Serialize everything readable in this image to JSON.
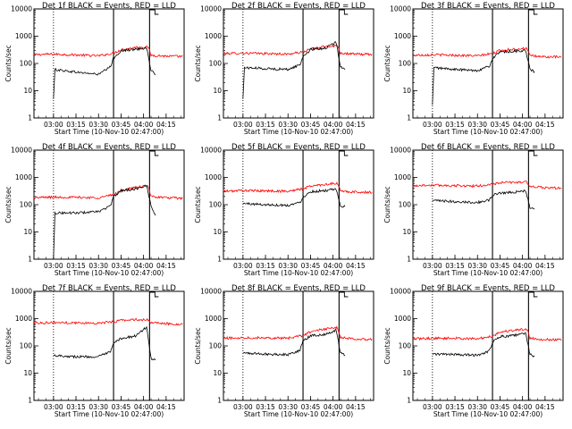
{
  "chart_data": [
    {
      "type": "line",
      "title": "Det 1f BLACK = Events, RED = LLD",
      "xlabel": "Start Time (10-Nov-10 02:47:00)",
      "ylabel": "Counts/sec",
      "yscale": "log",
      "ylim": [
        1,
        10000
      ],
      "xlim": [
        "02:47:00",
        "04:27:00"
      ],
      "x_ticks": [
        "03:00",
        "03:15",
        "03:30",
        "03:45",
        "04:00",
        "04:15"
      ],
      "y_ticks": [
        "1",
        "10",
        "100",
        "1000",
        "10000"
      ],
      "markers": [
        {
          "time": "03:00",
          "style": "dotted"
        },
        {
          "time": "03:40",
          "style": "solid"
        },
        {
          "time": "04:04",
          "style": "solid"
        }
      ],
      "series": [
        {
          "color": "#ff0000",
          "t": [
            "02:47",
            "03:00",
            "03:15",
            "03:30",
            "03:40",
            "03:45",
            "03:55",
            "04:03",
            "04:05",
            "04:15",
            "04:26"
          ],
          "values": [
            210,
            220,
            205,
            190,
            240,
            320,
            390,
            400,
            200,
            185,
            180
          ]
        },
        {
          "color": "#000000",
          "t": [
            "03:00",
            "03:01",
            "03:15",
            "03:30",
            "03:38",
            "03:40",
            "03:45",
            "03:55",
            "04:02",
            "04:05",
            "04:08"
          ],
          "values": [
            5,
            60,
            48,
            40,
            75,
            160,
            290,
            330,
            380,
            55,
            40
          ]
        }
      ]
    },
    {
      "type": "line",
      "title": "Det 2f BLACK = Events, RED = LLD",
      "xlabel": "Start Time (10-Nov-10 02:47:00)",
      "ylabel": "Counts/sec",
      "yscale": "log",
      "ylim": [
        1,
        10000
      ],
      "xlim": [
        "02:47:00",
        "04:27:00"
      ],
      "x_ticks": [
        "03:00",
        "03:15",
        "03:30",
        "03:45",
        "04:00",
        "04:15"
      ],
      "y_ticks": [
        "1",
        "10",
        "100",
        "1000",
        "10000"
      ],
      "markers": [
        {
          "time": "03:00",
          "style": "dotted"
        },
        {
          "time": "03:40",
          "style": "solid"
        },
        {
          "time": "04:04",
          "style": "solid"
        }
      ],
      "series": [
        {
          "color": "#ff0000",
          "t": [
            "02:47",
            "03:00",
            "03:15",
            "03:30",
            "03:40",
            "03:45",
            "03:55",
            "04:03",
            "04:05",
            "04:15",
            "04:26"
          ],
          "values": [
            230,
            240,
            230,
            220,
            260,
            340,
            420,
            450,
            240,
            220,
            215
          ]
        },
        {
          "color": "#000000",
          "t": [
            "03:00",
            "03:01",
            "03:15",
            "03:30",
            "03:38",
            "03:40",
            "03:45",
            "03:55",
            "04:02",
            "04:05",
            "04:08"
          ],
          "values": [
            5,
            70,
            65,
            60,
            90,
            180,
            320,
            370,
            600,
            80,
            60
          ]
        }
      ]
    },
    {
      "type": "line",
      "title": "Det 3f BLACK = Events, RED = LLD",
      "xlabel": "Start Time (10-Nov-10 02:47:00)",
      "ylabel": "Counts/sec",
      "yscale": "log",
      "ylim": [
        1,
        10000
      ],
      "xlim": [
        "02:47:00",
        "04:27:00"
      ],
      "x_ticks": [
        "03:00",
        "03:15",
        "03:30",
        "03:45",
        "04:00",
        "04:15"
      ],
      "y_ticks": [
        "1",
        "10",
        "100",
        "1000",
        "10000"
      ],
      "markers": [
        {
          "time": "03:00",
          "style": "dotted"
        },
        {
          "time": "03:40",
          "style": "solid"
        },
        {
          "time": "04:04",
          "style": "solid"
        }
      ],
      "series": [
        {
          "color": "#ff0000",
          "t": [
            "02:47",
            "03:00",
            "03:15",
            "03:30",
            "03:40",
            "03:45",
            "03:55",
            "04:03",
            "04:05",
            "04:15",
            "04:26"
          ],
          "values": [
            200,
            210,
            200,
            190,
            230,
            300,
            340,
            360,
            190,
            175,
            170
          ]
        },
        {
          "color": "#000000",
          "t": [
            "03:00",
            "03:01",
            "03:15",
            "03:30",
            "03:38",
            "03:40",
            "03:45",
            "03:55",
            "04:02",
            "04:05",
            "04:08"
          ],
          "values": [
            3,
            70,
            60,
            55,
            80,
            150,
            260,
            280,
            300,
            60,
            50
          ]
        }
      ]
    },
    {
      "type": "line",
      "title": "Det 4f BLACK = Events, RED = LLD",
      "xlabel": "Start Time (10-Nov-10 02:47:00)",
      "ylabel": "Counts/sec",
      "yscale": "log",
      "ylim": [
        1,
        10000
      ],
      "xlim": [
        "02:47:00",
        "04:27:00"
      ],
      "x_ticks": [
        "03:00",
        "03:15",
        "03:30",
        "03:45",
        "04:00",
        "04:15"
      ],
      "y_ticks": [
        "1",
        "10",
        "100",
        "1000",
        "10000"
      ],
      "markers": [
        {
          "time": "03:00",
          "style": "dotted"
        },
        {
          "time": "03:40",
          "style": "solid"
        },
        {
          "time": "04:04",
          "style": "solid"
        }
      ],
      "series": [
        {
          "color": "#ff0000",
          "t": [
            "02:47",
            "03:00",
            "03:15",
            "03:30",
            "03:40",
            "03:45",
            "03:55",
            "04:03",
            "04:05",
            "04:15",
            "04:26"
          ],
          "values": [
            180,
            190,
            185,
            180,
            230,
            330,
            430,
            480,
            200,
            180,
            170
          ]
        },
        {
          "color": "#000000",
          "t": [
            "03:00",
            "03:01",
            "03:15",
            "03:30",
            "03:38",
            "03:40",
            "03:45",
            "03:55",
            "04:02",
            "04:05",
            "04:08"
          ],
          "values": [
            1,
            50,
            50,
            55,
            90,
            190,
            330,
            380,
            500,
            90,
            40
          ]
        }
      ]
    },
    {
      "type": "line",
      "title": "Det 5f BLACK = Events, RED = LLD",
      "xlabel": "Start Time (10-Nov-10 02:47:00)",
      "ylabel": "Counts/sec",
      "yscale": "log",
      "ylim": [
        1,
        10000
      ],
      "xlim": [
        "02:47:00",
        "04:27:00"
      ],
      "x_ticks": [
        "03:00",
        "03:15",
        "03:30",
        "03:45",
        "04:00",
        "04:15"
      ],
      "y_ticks": [
        "1",
        "10",
        "100",
        "1000",
        "10000"
      ],
      "markers": [
        {
          "time": "03:00",
          "style": "dotted"
        },
        {
          "time": "03:40",
          "style": "solid"
        },
        {
          "time": "04:04",
          "style": "solid"
        }
      ],
      "series": [
        {
          "color": "#ff0000",
          "t": [
            "02:47",
            "03:00",
            "03:15",
            "03:30",
            "03:40",
            "03:45",
            "03:55",
            "04:03",
            "04:05",
            "04:15",
            "04:26"
          ],
          "values": [
            310,
            330,
            320,
            310,
            380,
            480,
            560,
            600,
            310,
            290,
            280
          ]
        },
        {
          "color": "#000000",
          "t": [
            "03:00",
            "03:01",
            "03:15",
            "03:30",
            "03:38",
            "03:40",
            "03:45",
            "03:55",
            "04:02",
            "04:05",
            "04:08"
          ],
          "values": [
            110,
            110,
            100,
            95,
            120,
            190,
            300,
            330,
            360,
            90,
            85
          ]
        }
      ]
    },
    {
      "type": "line",
      "title": "Det 6f BLACK = Events, RED = LLD",
      "xlabel": "Start Time (10-Nov-10 02:47:00)",
      "ylabel": "Counts/sec",
      "yscale": "log",
      "ylim": [
        1,
        10000
      ],
      "xlim": [
        "02:47:00",
        "04:27:00"
      ],
      "x_ticks": [
        "03:00",
        "03:15",
        "03:30",
        "03:45",
        "04:00",
        "04:15"
      ],
      "y_ticks": [
        "1",
        "10",
        "100",
        "1000",
        "10000"
      ],
      "markers": [
        {
          "time": "03:00",
          "style": "dotted"
        },
        {
          "time": "03:40",
          "style": "solid"
        },
        {
          "time": "04:04",
          "style": "solid"
        }
      ],
      "series": [
        {
          "color": "#ff0000",
          "t": [
            "02:47",
            "03:00",
            "03:15",
            "03:30",
            "03:40",
            "03:45",
            "03:55",
            "04:03",
            "04:05",
            "04:15",
            "04:26"
          ],
          "values": [
            500,
            520,
            500,
            480,
            560,
            640,
            660,
            680,
            450,
            420,
            400
          ]
        },
        {
          "color": "#000000",
          "t": [
            "03:00",
            "03:01",
            "03:15",
            "03:30",
            "03:38",
            "03:40",
            "03:45",
            "03:55",
            "04:02",
            "04:05",
            "04:08"
          ],
          "values": [
            140,
            140,
            130,
            120,
            150,
            220,
            270,
            290,
            320,
            80,
            70
          ]
        }
      ]
    },
    {
      "type": "line",
      "title": "Det 7f BLACK = Events, RED = LLD",
      "xlabel": "Start Time (10-Nov-10 02:47:00)",
      "ylabel": "Counts/sec",
      "yscale": "log",
      "ylim": [
        1,
        10000
      ],
      "xlim": [
        "02:47:00",
        "04:27:00"
      ],
      "x_ticks": [
        "03:00",
        "03:15",
        "03:30",
        "03:45",
        "04:00",
        "04:15"
      ],
      "y_ticks": [
        "1",
        "10",
        "100",
        "1000",
        "10000"
      ],
      "markers": [
        {
          "time": "03:00",
          "style": "dotted"
        },
        {
          "time": "03:40",
          "style": "solid"
        },
        {
          "time": "04:04",
          "style": "solid"
        }
      ],
      "series": [
        {
          "color": "#ff0000",
          "t": [
            "02:47",
            "03:00",
            "03:15",
            "03:30",
            "03:40",
            "03:45",
            "03:55",
            "04:03",
            "04:05",
            "04:15",
            "04:26"
          ],
          "values": [
            700,
            720,
            700,
            680,
            760,
            880,
            920,
            900,
            700,
            650,
            620
          ]
        },
        {
          "color": "#000000",
          "t": [
            "03:00",
            "03:01",
            "03:15",
            "03:30",
            "03:38",
            "03:40",
            "03:45",
            "03:55",
            "04:02",
            "04:05",
            "04:08"
          ],
          "values": [
            45,
            45,
            40,
            40,
            60,
            120,
            190,
            230,
            500,
            35,
            30
          ]
        }
      ]
    },
    {
      "type": "line",
      "title": "Det 8f BLACK = Events, RED = LLD",
      "xlabel": "Start Time (10-Nov-10 02:47:00)",
      "ylabel": "Counts/sec",
      "yscale": "log",
      "ylim": [
        1,
        10000
      ],
      "xlim": [
        "02:47:00",
        "04:27:00"
      ],
      "x_ticks": [
        "03:00",
        "03:15",
        "03:30",
        "03:45",
        "04:00",
        "04:15"
      ],
      "y_ticks": [
        "1",
        "10",
        "100",
        "1000",
        "10000"
      ],
      "markers": [
        {
          "time": "03:00",
          "style": "dotted"
        },
        {
          "time": "03:40",
          "style": "solid"
        },
        {
          "time": "04:04",
          "style": "solid"
        }
      ],
      "series": [
        {
          "color": "#ff0000",
          "t": [
            "02:47",
            "03:00",
            "03:15",
            "03:30",
            "03:40",
            "03:45",
            "03:55",
            "04:03",
            "04:05",
            "04:15",
            "04:26"
          ],
          "values": [
            190,
            200,
            200,
            190,
            240,
            330,
            420,
            460,
            200,
            180,
            175
          ]
        },
        {
          "color": "#000000",
          "t": [
            "03:00",
            "03:01",
            "03:15",
            "03:30",
            "03:38",
            "03:40",
            "03:45",
            "03:55",
            "04:02",
            "04:05",
            "04:08"
          ],
          "values": [
            55,
            55,
            50,
            48,
            70,
            150,
            240,
            260,
            380,
            55,
            45
          ]
        }
      ]
    },
    {
      "type": "line",
      "title": "Det 9f BLACK = Events, RED = LLD",
      "xlabel": "Start Time (10-Nov-10 02:47:00)",
      "ylabel": "Counts/sec",
      "yscale": "log",
      "ylim": [
        1,
        10000
      ],
      "xlim": [
        "02:47:00",
        "04:27:00"
      ],
      "x_ticks": [
        "03:00",
        "03:15",
        "03:30",
        "03:45",
        "04:00",
        "04:15"
      ],
      "y_ticks": [
        "1",
        "10",
        "100",
        "1000",
        "10000"
      ],
      "markers": [
        {
          "time": "03:00",
          "style": "dotted"
        },
        {
          "time": "03:40",
          "style": "solid"
        },
        {
          "time": "04:04",
          "style": "solid"
        }
      ],
      "series": [
        {
          "color": "#ff0000",
          "t": [
            "02:47",
            "03:00",
            "03:15",
            "03:30",
            "03:40",
            "03:45",
            "03:55",
            "04:03",
            "04:05",
            "04:15",
            "04:26"
          ],
          "values": [
            180,
            190,
            190,
            180,
            230,
            320,
            380,
            420,
            190,
            170,
            165
          ]
        },
        {
          "color": "#000000",
          "t": [
            "03:00",
            "03:01",
            "03:15",
            "03:30",
            "03:38",
            "03:40",
            "03:45",
            "03:55",
            "04:02",
            "04:05",
            "04:08"
          ],
          "values": [
            50,
            50,
            48,
            45,
            65,
            140,
            220,
            240,
            300,
            50,
            40
          ]
        }
      ]
    }
  ]
}
